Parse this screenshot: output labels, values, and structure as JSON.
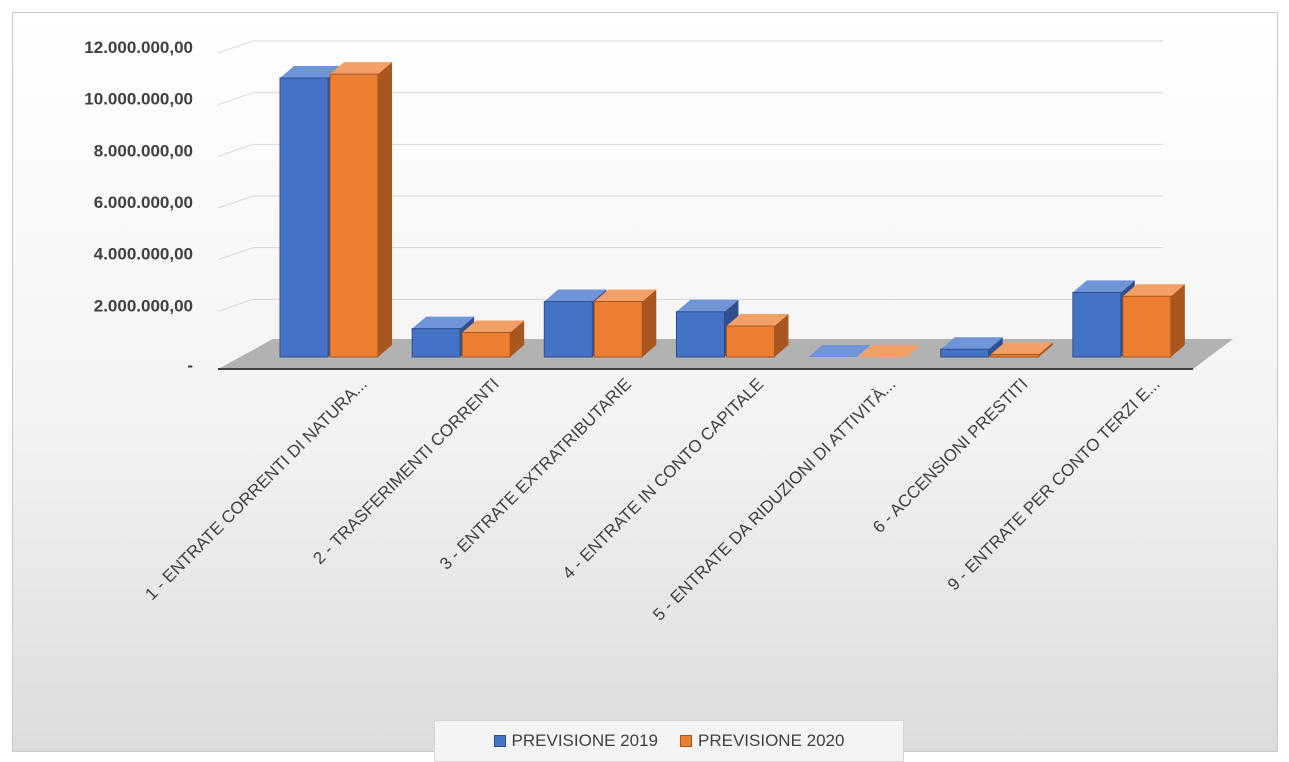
{
  "colors": {
    "series_2019": "#4472c4",
    "series_2019_dark": "#2f4f8f",
    "series_2019_light": "#6f94d8",
    "series_2020": "#ed7d31",
    "series_2020_dark": "#a9561f",
    "series_2020_light": "#f3a066",
    "gridline": "#d9d9d9",
    "floor": "#a6a6a6",
    "axis_text": "#404040"
  },
  "chart_data": {
    "type": "bar",
    "style": "3d-clustered-column",
    "categories": [
      "1 - ENTRATE CORRENTI DI NATURA...",
      "2 - TRASFERIMENTI CORRENTI",
      "3 - ENTRATE EXTRATRIBUTARIE",
      "4 - ENTRATE IN CONTO CAPITALE",
      "5 - ENTRATE DA RIDUZIONI DI ATTIVITÀ...",
      "6 - ACCENSIONI PRESTITI",
      "9 - ENTRATE PER CONTO TERZI E..."
    ],
    "series": [
      {
        "name": "PREVISIONE 2019",
        "values": [
          10800000,
          1100000,
          2150000,
          1750000,
          0,
          300000,
          2500000
        ]
      },
      {
        "name": "PREVISIONE 2020",
        "values": [
          10950000,
          950000,
          2150000,
          1200000,
          0,
          100000,
          2350000
        ]
      }
    ],
    "yticks": [
      "-",
      "2.000.000,00",
      "4.000.000,00",
      "6.000.000,00",
      "8.000.000,00",
      "10.000.000,00",
      "12.000.000,00"
    ],
    "ylim": [
      0,
      12000000
    ],
    "grid": true,
    "legend_position": "bottom"
  }
}
